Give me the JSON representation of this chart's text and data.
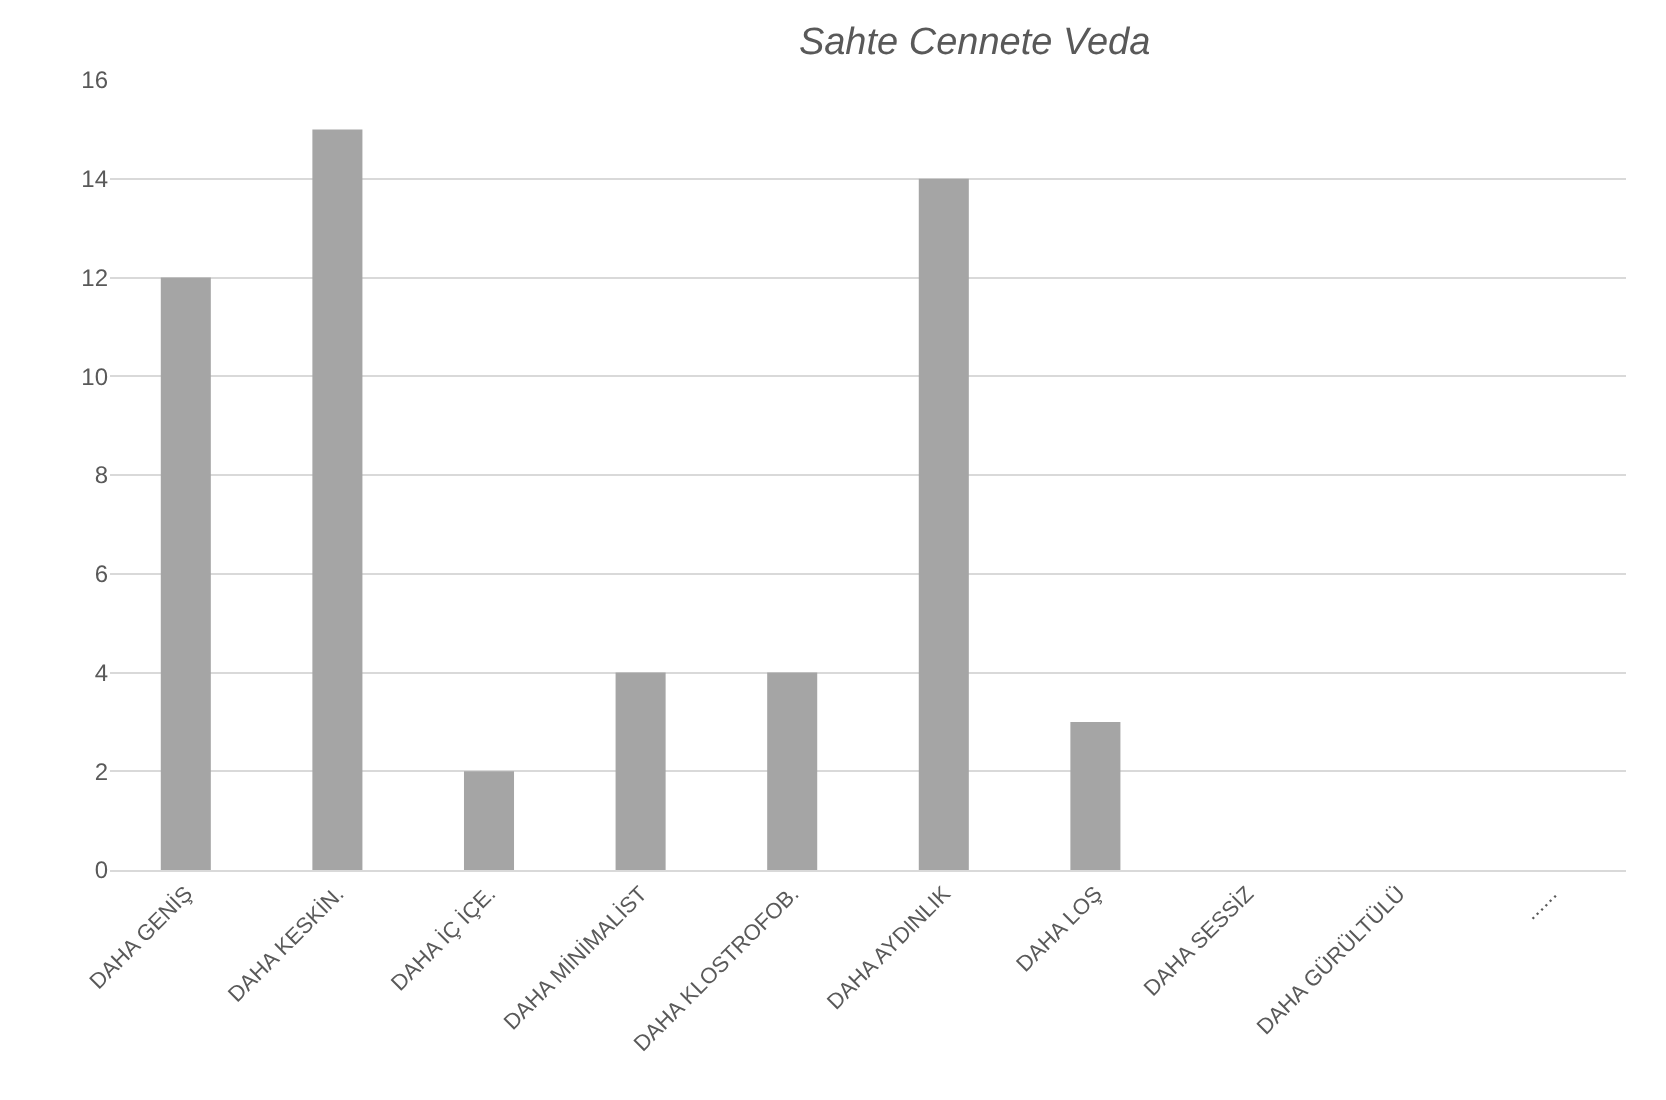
{
  "chart_data": {
    "type": "bar",
    "title": "Sahte Cennete Veda",
    "categories": [
      "DAHA GENİŞ",
      "DAHA KESKİN.",
      "DAHA İÇ İÇE.",
      "DAHA MİNİMALİST",
      "DAHA KLOSTROFOB.",
      "DAHA AYDINLIK",
      "DAHA LOŞ",
      "DAHA SESSİZ",
      "DAHA GÜRÜLTÜLÜ",
      "......"
    ],
    "values": [
      12,
      15,
      2,
      4,
      4,
      14,
      3,
      0,
      0,
      0
    ],
    "color": "#a5a5a5",
    "ylim": [
      0,
      16
    ],
    "yticks": [
      0,
      2,
      4,
      6,
      8,
      10,
      12,
      14,
      16
    ],
    "grid": "y"
  }
}
